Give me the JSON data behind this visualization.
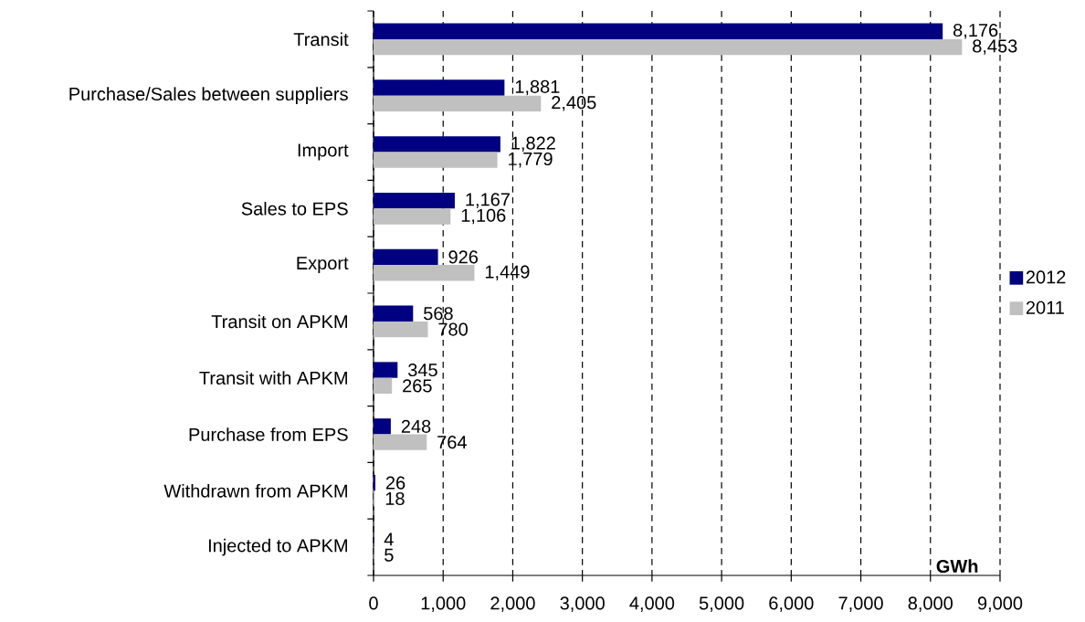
{
  "chart_data": {
    "type": "bar",
    "orientation": "horizontal",
    "categories": [
      "Transit",
      "Purchase/Sales between suppliers",
      "Import",
      "Sales to EPS",
      "Export",
      "Transit on APKM",
      "Transit with APKM",
      "Purchase from EPS",
      "Withdrawn from APKM",
      "Injected to APKM"
    ],
    "series": [
      {
        "name": "2012",
        "color": "#000080",
        "values": [
          8176,
          1881,
          1822,
          1167,
          926,
          568,
          345,
          248,
          26,
          4
        ],
        "value_labels": [
          "8,176",
          "1,881",
          "1,822",
          "1,167",
          "926",
          "568",
          "345",
          "248",
          "26",
          "4"
        ]
      },
      {
        "name": "2011",
        "color": "#c0c0c0",
        "values": [
          8453,
          2405,
          1779,
          1106,
          1449,
          780,
          265,
          764,
          18,
          5
        ],
        "value_labels": [
          "8,453",
          "2,405",
          "1,779",
          "1,106",
          "1,449",
          "780",
          "265",
          "764",
          "18",
          "5"
        ]
      }
    ],
    "xlabel": "GWh",
    "xlim": [
      0,
      9000
    ],
    "xticks": [
      0,
      {
        "value": 1000,
        "label": "1,000"
      },
      {
        "value": 2000,
        "label": "2,000"
      },
      {
        "value": 3000,
        "label": "3,000"
      },
      {
        "value": 4000,
        "label": "4,000"
      },
      {
        "value": 5000,
        "label": "5,000"
      },
      {
        "value": 6000,
        "label": "6,000"
      },
      {
        "value": 7000,
        "label": "7,000"
      },
      {
        "value": 8000,
        "label": "8,000"
      },
      {
        "value": 9000,
        "label": "9,000"
      }
    ],
    "grid": "x",
    "legend": "right"
  }
}
